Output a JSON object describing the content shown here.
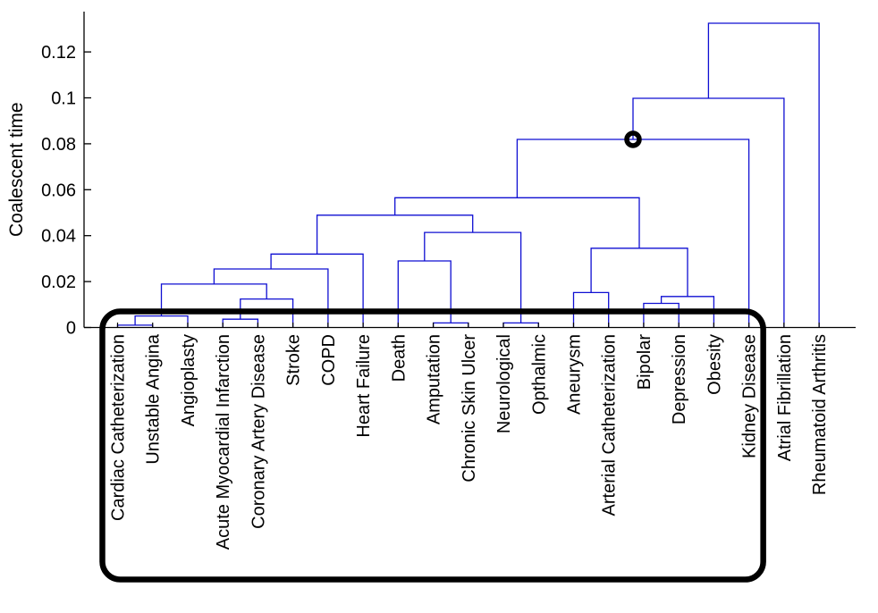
{
  "chart_data": {
    "type": "dendrogram",
    "title": "",
    "xlabel": "",
    "ylabel": "Coalescent time",
    "yticks": [
      0,
      0.02,
      0.04,
      0.06,
      0.08,
      0.1,
      0.12
    ],
    "ylim": [
      0,
      0.1375
    ],
    "grid": false,
    "legend": null,
    "line_color": "#0f0fd2",
    "axis_color": "#000000",
    "leaves": [
      "Cardiac Catheterization",
      "Unstable Angina",
      "Angioplasty",
      "Acute Myocardial Infarction",
      "Coronary Artery Disease",
      "Stroke",
      "COPD",
      "Heart Failure",
      "Death",
      "Amputation",
      "Chronic Skin Ulcer",
      "Neurological",
      "Opthalmic",
      "Aneurysm",
      "Arterial Catheterization",
      "Bipolar",
      "Depression",
      "Obesity",
      "Kidney Disease",
      "Atrial Fibrillation",
      "Rheumatoid Arthritis"
    ],
    "merges_note": "each merge is [childA, childB, coalescent_time]; ids 0-20 are leaves, id 21+k is merges[k]",
    "merges": [
      [
        0,
        1,
        0.001
      ],
      [
        21,
        2,
        0.005
      ],
      [
        3,
        4,
        0.0036
      ],
      [
        23,
        5,
        0.0124
      ],
      [
        22,
        24,
        0.0189
      ],
      [
        25,
        6,
        0.0255
      ],
      [
        26,
        7,
        0.032
      ],
      [
        9,
        10,
        0.002
      ],
      [
        8,
        28,
        0.029
      ],
      [
        11,
        12,
        0.002
      ],
      [
        29,
        30,
        0.0414
      ],
      [
        27,
        31,
        0.0489
      ],
      [
        13,
        14,
        0.0152
      ],
      [
        15,
        16,
        0.0105
      ],
      [
        34,
        17,
        0.0135
      ],
      [
        33,
        35,
        0.0345
      ],
      [
        32,
        36,
        0.0565
      ],
      [
        37,
        18,
        0.0819
      ],
      [
        38,
        19,
        0.0998
      ],
      [
        39,
        20,
        0.1325
      ]
    ],
    "annotations": {
      "circle": {
        "merge_index": 17,
        "color": "#000000"
      },
      "box": {
        "first_leaf": 0,
        "last_leaf": 18,
        "color": "#000000"
      }
    }
  }
}
